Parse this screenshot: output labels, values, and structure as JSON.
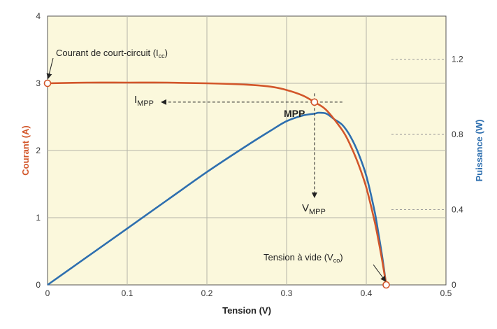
{
  "chart_data": {
    "type": "line",
    "xlabel": "Tension (V)",
    "ylabel_left": "Courant (A)",
    "ylabel_right": "Puissance (W)",
    "xlim": [
      0,
      0.5
    ],
    "ylim_left": [
      0,
      4
    ],
    "ylim_right": [
      0,
      1.4286
    ],
    "x_ticks": [
      "0",
      "0.1",
      "0.2",
      "0.3",
      "0.4",
      "0.5"
    ],
    "y_left_ticks": [
      "0",
      "1",
      "2",
      "3",
      "4"
    ],
    "y_right_ticks": [
      "0",
      "0.4",
      "0.8",
      "1.2"
    ],
    "grid": true,
    "colors": {
      "current": "#d2562a",
      "power": "#2e6faf",
      "plot_bg": "#fbf8dc",
      "grid": "#b5b5a8"
    },
    "series": [
      {
        "axis": "left",
        "x": [
          0,
          0.05,
          0.1,
          0.15,
          0.2,
          0.25,
          0.28,
          0.3,
          0.32,
          0.335,
          0.35,
          0.37,
          0.38,
          0.39,
          0.4,
          0.41,
          0.415,
          0.42,
          0.425
        ],
        "values": [
          3.0,
          3.01,
          3.01,
          3.01,
          3.0,
          2.98,
          2.95,
          2.9,
          2.82,
          2.72,
          2.6,
          2.3,
          2.08,
          1.8,
          1.45,
          0.97,
          0.68,
          0.36,
          0.0
        ]
      },
      {
        "axis": "right",
        "x": [
          0,
          0.05,
          0.1,
          0.15,
          0.2,
          0.25,
          0.28,
          0.3,
          0.32,
          0.335,
          0.34,
          0.35,
          0.36,
          0.37,
          0.38,
          0.39,
          0.4,
          0.41,
          0.415,
          0.42,
          0.425
        ],
        "values": [
          0,
          0.15,
          0.3,
          0.45,
          0.6,
          0.74,
          0.82,
          0.87,
          0.9,
          0.91,
          0.915,
          0.91,
          0.88,
          0.85,
          0.79,
          0.7,
          0.58,
          0.4,
          0.28,
          0.15,
          0.0
        ]
      }
    ],
    "markers": [
      {
        "x": 0,
        "y": 3.0
      },
      {
        "x": 0.335,
        "y": 2.72
      },
      {
        "x": 0.425,
        "y": 0.0
      }
    ],
    "annotations": {
      "icc": {
        "text": "Courant de court-circuit (I",
        "sub": "cc",
        "close": ")"
      },
      "vco": {
        "text": "Tension à vide (V",
        "sub": "co",
        "close": ")"
      },
      "impp": {
        "text": "I",
        "sub": "MPP"
      },
      "vmpp": {
        "text": "V",
        "sub": "MPP"
      },
      "mpp": "MPP"
    }
  }
}
